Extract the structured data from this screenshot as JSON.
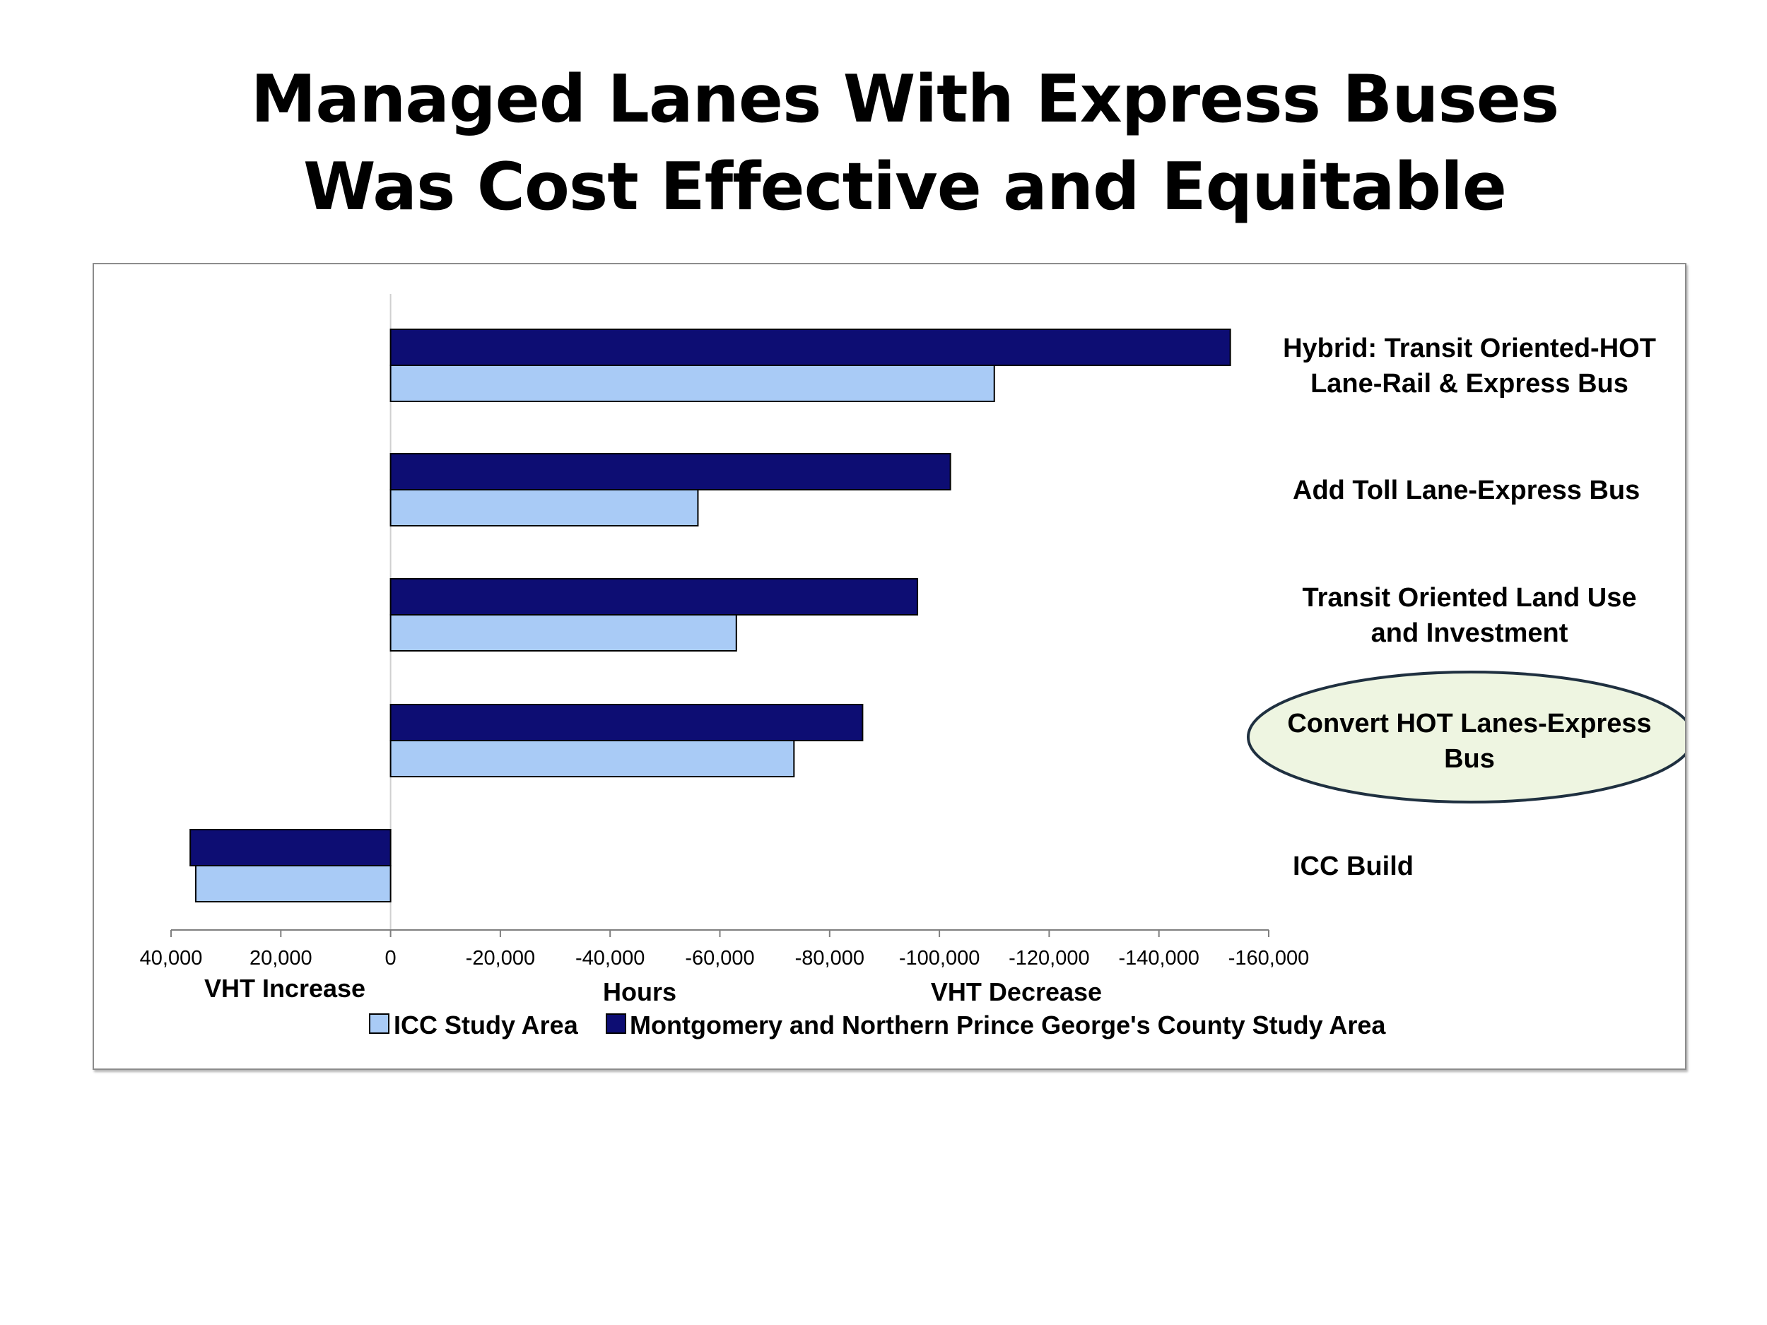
{
  "slide": {
    "title_line1": "Managed Lanes With Express Buses",
    "title_line2": "Was Cost Effective and Equitable"
  },
  "chart_data": {
    "type": "bar",
    "orientation": "horizontal",
    "categories": [
      [
        "Hybrid: Transit Oriented-HOT",
        "Lane-Rail & Express Bus"
      ],
      [
        "Add Toll Lane-Express Bus"
      ],
      [
        "Transit Oriented Land Use",
        "and Investment"
      ],
      [
        "Convert HOT Lanes-Express",
        "Bus"
      ],
      [
        "ICC Build"
      ]
    ],
    "highlighted_category_index": 3,
    "highlight_fill": "#eef5e1",
    "highlight_stroke": "#1f3040",
    "series": [
      {
        "name": "ICC Study Area",
        "color": "#a9cbf6",
        "values": [
          -110000,
          -56000,
          -63000,
          -73500,
          35500
        ]
      },
      {
        "name": "Montgomery and Northern Prince George's County Study Area",
        "color": "#0d0d73",
        "values": [
          -153000,
          -102000,
          -96000,
          -86000,
          36500
        ]
      }
    ],
    "xlim": [
      40000,
      -160000
    ],
    "x_ticks": [
      40000,
      20000,
      0,
      -20000,
      -40000,
      -60000,
      -80000,
      -100000,
      -120000,
      -140000,
      -160000
    ],
    "x_tick_labels": [
      "40,000",
      "20,000",
      "0",
      "-20,000",
      "-40,000",
      "-60,000",
      "-80,000",
      "-100,000",
      "-120,000",
      "-140,000",
      "-160,000"
    ],
    "x_axis_words": {
      "left": "VHT Increase",
      "center": "Hours",
      "right": "VHT Decrease"
    },
    "legend_position": "bottom",
    "grid": false
  }
}
